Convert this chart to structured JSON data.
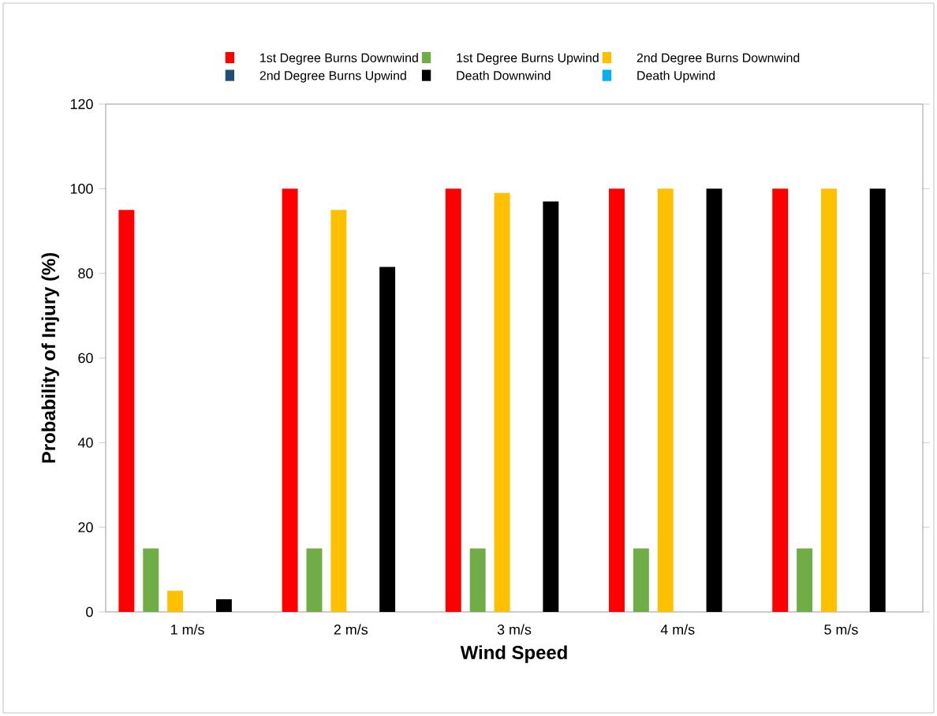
{
  "chart_data": {
    "type": "bar",
    "xlabel": "Wind Speed",
    "ylabel": "Probability of Injury (%)",
    "categories": [
      "1 m/s",
      "2 m/s",
      "3 m/s",
      "4 m/s",
      "5 m/s"
    ],
    "series": [
      {
        "name": "1st Degree Burns  Downwind",
        "color": "#ff0000",
        "values": [
          95,
          100,
          100,
          100,
          100
        ]
      },
      {
        "name": "1st Degree Burns  Upwind",
        "color": "#70ad47",
        "values": [
          15,
          15,
          15,
          15,
          15
        ]
      },
      {
        "name": "2nd Degree Burns Downwind",
        "color": "#ffc000",
        "values": [
          5,
          95,
          99,
          100,
          100
        ]
      },
      {
        "name": "2nd Degree Burns Upwind",
        "color": "#1f4e79",
        "values": [
          0,
          0,
          0,
          0,
          0
        ]
      },
      {
        "name": "Death Downwind",
        "color": "#000000",
        "values": [
          3,
          81.5,
          97,
          100,
          100
        ]
      },
      {
        "name": "Death Upwind",
        "color": "#00b0f0",
        "values": [
          0,
          0,
          0,
          0,
          0
        ]
      }
    ],
    "ylim": [
      0,
      120
    ],
    "yticks": [
      0,
      20,
      40,
      60,
      80,
      100,
      120
    ],
    "legend": "top"
  }
}
